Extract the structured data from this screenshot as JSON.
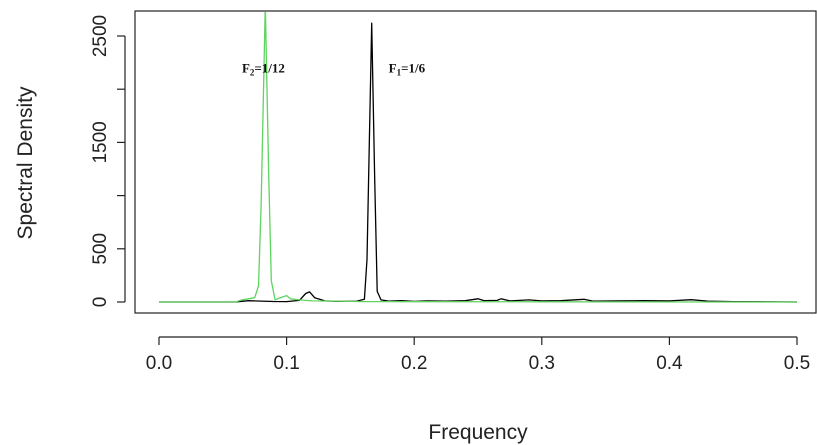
{
  "chart_data": {
    "type": "line",
    "xlabel": "Frequency",
    "ylabel": "Spectral Density",
    "xlim": [
      0.0,
      0.5
    ],
    "ylim": [
      0,
      2700
    ],
    "x_ticks": [
      "0.0",
      "0.1",
      "0.2",
      "0.3",
      "0.4",
      "0.5"
    ],
    "y_ticks": [
      "0",
      "500",
      "1500",
      "2500"
    ],
    "grid": false,
    "legend": "none",
    "series": [
      {
        "color": "#000000",
        "points": [
          [
            0.0,
            0
          ],
          [
            0.06,
            0
          ],
          [
            0.07,
            12
          ],
          [
            0.08,
            8
          ],
          [
            0.09,
            5
          ],
          [
            0.1,
            4
          ],
          [
            0.11,
            15
          ],
          [
            0.115,
            80
          ],
          [
            0.118,
            95
          ],
          [
            0.122,
            40
          ],
          [
            0.13,
            10
          ],
          [
            0.14,
            6
          ],
          [
            0.155,
            8
          ],
          [
            0.161,
            25
          ],
          [
            0.163,
            400
          ],
          [
            0.1667,
            2620
          ],
          [
            0.169,
            1200
          ],
          [
            0.171,
            100
          ],
          [
            0.174,
            20
          ],
          [
            0.18,
            8
          ],
          [
            0.19,
            12
          ],
          [
            0.2,
            6
          ],
          [
            0.21,
            10
          ],
          [
            0.225,
            8
          ],
          [
            0.24,
            12
          ],
          [
            0.25,
            30
          ],
          [
            0.255,
            12
          ],
          [
            0.265,
            15
          ],
          [
            0.268,
            30
          ],
          [
            0.275,
            10
          ],
          [
            0.29,
            20
          ],
          [
            0.3,
            10
          ],
          [
            0.315,
            12
          ],
          [
            0.333,
            25
          ],
          [
            0.34,
            8
          ],
          [
            0.36,
            10
          ],
          [
            0.38,
            12
          ],
          [
            0.4,
            10
          ],
          [
            0.417,
            22
          ],
          [
            0.43,
            8
          ],
          [
            0.45,
            4
          ],
          [
            0.5,
            0
          ]
        ]
      },
      {
        "color": "#5fd35f",
        "points": [
          [
            0.0,
            0
          ],
          [
            0.06,
            0
          ],
          [
            0.065,
            20
          ],
          [
            0.07,
            30
          ],
          [
            0.075,
            40
          ],
          [
            0.078,
            150
          ],
          [
            0.08,
            900
          ],
          [
            0.0833,
            2800
          ],
          [
            0.086,
            1200
          ],
          [
            0.088,
            200
          ],
          [
            0.091,
            20
          ],
          [
            0.095,
            40
          ],
          [
            0.1,
            60
          ],
          [
            0.103,
            30
          ],
          [
            0.11,
            20
          ],
          [
            0.12,
            10
          ],
          [
            0.14,
            8
          ],
          [
            0.16,
            4
          ],
          [
            0.2,
            3
          ],
          [
            0.3,
            2
          ],
          [
            0.5,
            0
          ]
        ]
      }
    ],
    "annotations": [
      {
        "main": "F",
        "sub": "2",
        "rest": "=1/12",
        "x": 0.065,
        "y": 2155
      },
      {
        "main": "F",
        "sub": "1",
        "rest": "=1/6",
        "x": 0.18,
        "y": 2155
      }
    ]
  }
}
